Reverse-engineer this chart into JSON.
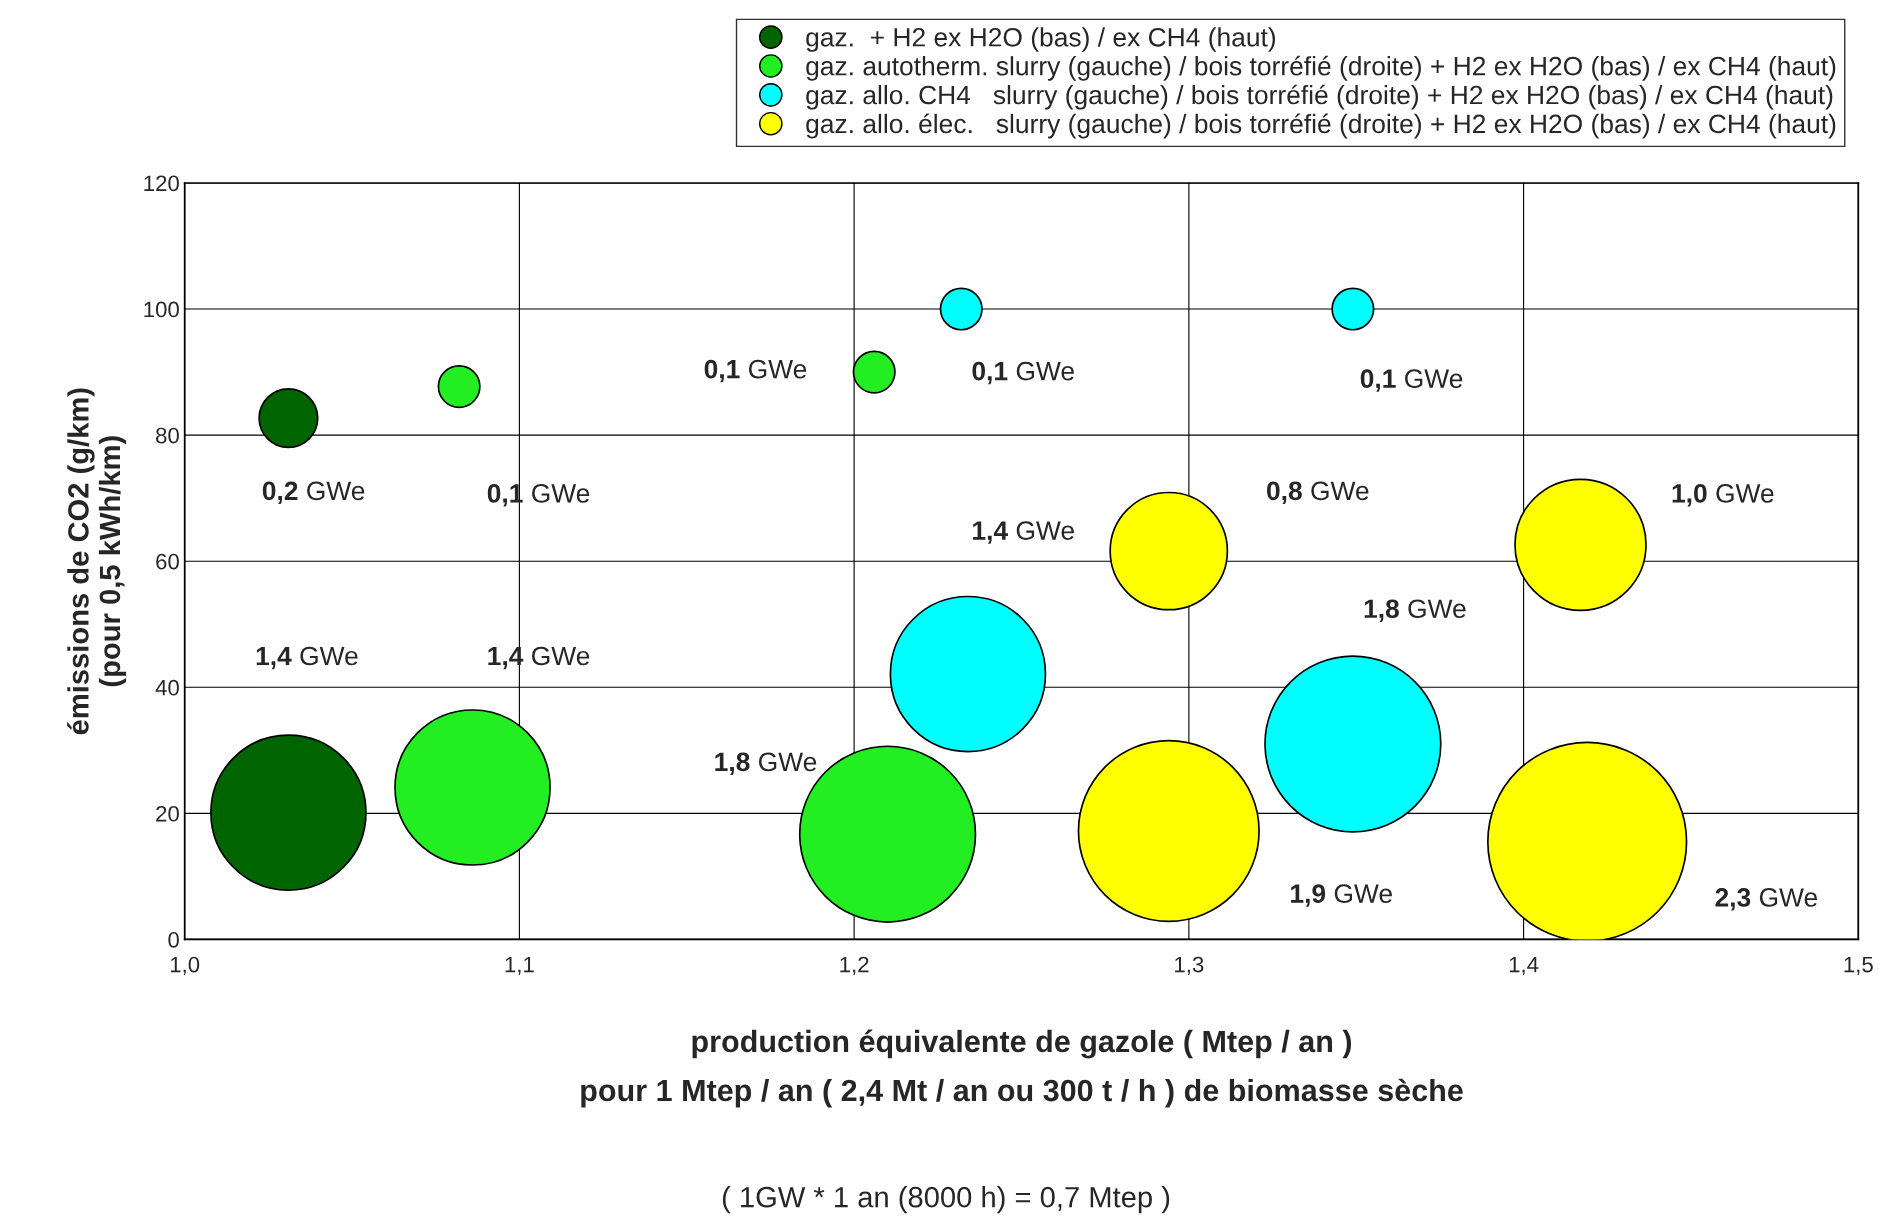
{
  "chart_data": {
    "type": "bubble",
    "xlabel": "production équivalente de gazole ( Mtep / an )\npour 1 Mtep / an ( 2,4 Mt / an ou 300 t / h ) de biomasse sèche",
    "ylabel": "émissions de CO2 (g/km)\n(pour 0,5 kWh/km)",
    "xlim": [
      1.0,
      1.5
    ],
    "ylim": [
      0,
      120
    ],
    "xticks": [
      {
        "value": 1.0,
        "label": "1,0"
      },
      {
        "value": 1.1,
        "label": "1,1"
      },
      {
        "value": 1.2,
        "label": "1,2"
      },
      {
        "value": 1.3,
        "label": "1,3"
      },
      {
        "value": 1.4,
        "label": "1,4"
      },
      {
        "value": 1.5,
        "label": "1,5"
      }
    ],
    "yticks": [
      0,
      20,
      40,
      60,
      80,
      100,
      120
    ],
    "grid": true,
    "legend": "top",
    "series": [
      {
        "name": "gaz.  + H2 ex H2O (bas) / ex CH4 (haut)",
        "color": "#006400",
        "x": [
          1.031,
          1.031
        ],
        "values": [
          82.7,
          20.1
        ],
        "sizes": [
          0.2,
          1.4
        ],
        "value_labels": [
          "0,2 GWe",
          "1,4 GWe"
        ]
      },
      {
        "name": "gaz. autotherm. slurry (gauche) / bois torréfié (droite) + H2 ex H2O (bas) / ex CH4 (haut)",
        "color": "#22ee22",
        "x": [
          1.082,
          1.086,
          1.206,
          1.21
        ],
        "values": [
          87.7,
          24.1,
          90,
          16.7
        ],
        "sizes": [
          0.1,
          1.4,
          0.1,
          1.8
        ],
        "value_labels": [
          "0,1 GWe",
          "1,4 GWe",
          "0,1 GWe",
          "1,8 GWe"
        ]
      },
      {
        "name": "gaz. allo. CH4   slurry (gauche) / bois torréfié (droite) + H2 ex H2O (bas) / ex CH4 (haut)",
        "color": "#00ffff",
        "x": [
          1.232,
          1.234,
          1.349,
          1.349
        ],
        "values": [
          100,
          42.1,
          100,
          31
        ],
        "sizes": [
          0.1,
          1.4,
          0.1,
          1.8
        ],
        "value_labels": [
          "0,1 GWe",
          "1,4 GWe",
          "0,1 GWe",
          "1,8 GWe"
        ]
      },
      {
        "name": "gaz. allo. élec.   slurry (gauche) / bois torréfié (droite) + H2 ex H2O (bas) / ex CH4 (haut)",
        "color": "#ffff00",
        "x": [
          1.294,
          1.294,
          1.417,
          1.419
        ],
        "values": [
          61.6,
          17.2,
          62.6,
          15.5
        ],
        "sizes": [
          0.8,
          1.9,
          1.0,
          2.3
        ],
        "value_labels": [
          "0,8 GWe",
          "1,9 GWe",
          "1,0 GWe",
          "2,3 GWe"
        ]
      }
    ],
    "annotations": [
      "( 1GW * 1 an (8000 h) = 0,7 Mtep )"
    ]
  }
}
